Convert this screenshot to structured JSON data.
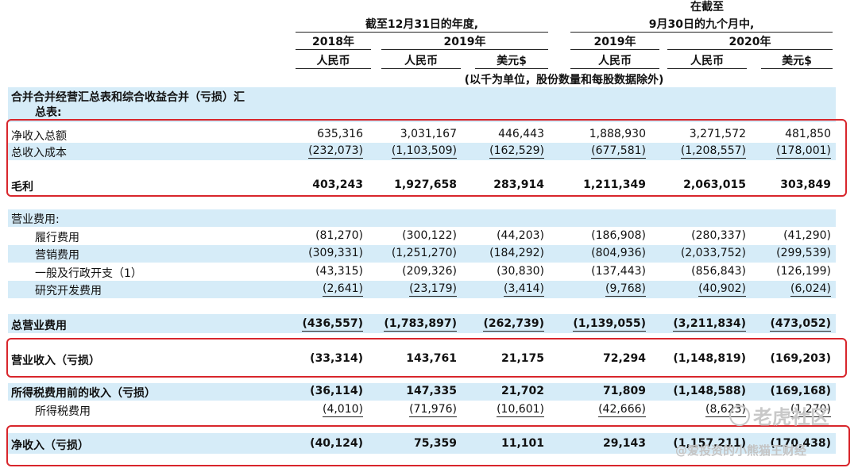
{
  "header": {
    "right_top": "在截至",
    "left_group": "截至12月31日的年度,",
    "right_group": "9月30日的九个月中,",
    "years": [
      "2018年",
      "2019年",
      "2019年",
      "2020年"
    ],
    "currencies": [
      "人民币",
      "人民币",
      "美元$",
      "人民币",
      "人民币",
      "美元$"
    ],
    "units_note": "(以千为单位，股份数量和每股数据除外)"
  },
  "section_title_line1": "合并合并经营汇总表和综合收益合并（亏损）汇",
  "section_title_line2": "总表:",
  "rows": [
    {
      "label": "净收入总额",
      "values": [
        "635,316",
        "3,031,167",
        "446,443",
        "1,888,930",
        "3,271,572",
        "481,850"
      ]
    },
    {
      "label": "总收入成本",
      "values": [
        "(232,073)",
        "(1,103,509)",
        "(162,529)",
        "(677,581)",
        "(1,208,557)",
        "(178,001)"
      ]
    },
    {
      "label": "毛利",
      "values": [
        "403,243",
        "1,927,658",
        "283,914",
        "1,211,349",
        "2,063,015",
        "303,849"
      ]
    },
    {
      "label": "营业费用:",
      "values": []
    },
    {
      "label": "履行费用",
      "values": [
        "(81,270)",
        "(300,122)",
        "(44,203)",
        "(186,908)",
        "(280,337)",
        "(41,290)"
      ]
    },
    {
      "label": "营销费用",
      "values": [
        "(309,331)",
        "(1,251,270)",
        "(184,292)",
        "(804,936)",
        "(2,033,752)",
        "(299,539)"
      ]
    },
    {
      "label": "一般及行政开支（1）",
      "values": [
        "(43,315)",
        "(209,326)",
        "(30,830)",
        "(137,443)",
        "(856,843)",
        "(126,199)"
      ]
    },
    {
      "label": "研究开发费用",
      "values": [
        "(2,641)",
        "(23,179)",
        "(3,414)",
        "(9,768)",
        "(40,902)",
        "(6,024)"
      ]
    },
    {
      "label": "总营业费用",
      "values": [
        "(436,557)",
        "(1,783,897)",
        "(262,739)",
        "(1,139,055)",
        "(3,211,834)",
        "(473,052)"
      ]
    },
    {
      "label": "营业收入（亏损）",
      "values": [
        "(33,314)",
        "143,761",
        "21,175",
        "72,294",
        "(1,148,819)",
        "(169,203)"
      ]
    },
    {
      "label": "所得税费用前的收入（亏损）",
      "values": [
        "(36,114)",
        "147,335",
        "21,702",
        "71,809",
        "(1,148,588)",
        "(169,168)"
      ]
    },
    {
      "label": "所得税费用",
      "values": [
        "(4,010)",
        "(71,976)",
        "(10,601)",
        "(42,666)",
        "(8,623)",
        "(1,270)"
      ]
    },
    {
      "label": "净收入（亏损）",
      "values": [
        "(40,124)",
        "75,359",
        "11,101",
        "29,143",
        "(1,157,211)",
        "(170,438)"
      ]
    }
  ],
  "watermark": {
    "logo_text": "老虎社区",
    "handle": "@爱投资的小熊猫王财经"
  },
  "colors": {
    "band": "#d6ecf8",
    "highlight": "#d8262c"
  }
}
